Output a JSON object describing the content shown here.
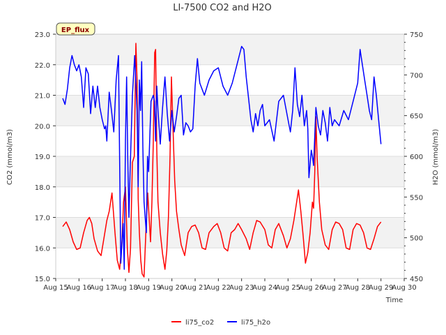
{
  "chart_data": {
    "type": "line",
    "title": "LI-7500 CO2 and H2O",
    "badge": "EP_flux",
    "xlabel": "Time",
    "ylabel_left": "CO2 (mmol/m3)",
    "ylabel_right": "H2O (mmol/m3)",
    "x_ticks": [
      "Aug 15",
      "Aug 16",
      "Aug 17",
      "Aug 18",
      "Aug 19",
      "Aug 20",
      "Aug 21",
      "Aug 22",
      "Aug 23",
      "Aug 24",
      "Aug 25",
      "Aug 26",
      "Aug 27",
      "Aug 28",
      "Aug 29",
      "Aug 30"
    ],
    "xlim": [
      15,
      30
    ],
    "ylim_left": [
      15.0,
      23.0
    ],
    "ylim_right": [
      450,
      750
    ],
    "yticks_left": [
      "15.0",
      "16.0",
      "17.0",
      "18.0",
      "19.0",
      "20.0",
      "21.0",
      "22.0",
      "23.0"
    ],
    "yticks_right": [
      "450",
      "500",
      "550",
      "600",
      "650",
      "700",
      "750"
    ],
    "grid": "horizontal",
    "band_shading": "alternating",
    "legend_position": "bottom-center",
    "series": [
      {
        "name": "li75_co2",
        "color": "#ff0000",
        "axis": "left",
        "x": [
          15.3,
          15.45,
          15.6,
          15.75,
          15.9,
          16.05,
          16.2,
          16.35,
          16.45,
          16.55,
          16.65,
          16.8,
          16.95,
          17.05,
          17.2,
          17.3,
          17.42,
          17.55,
          17.65,
          17.75,
          17.85,
          17.92,
          18.0,
          18.08,
          18.15,
          18.22,
          18.3,
          18.38,
          18.45,
          18.5,
          18.55,
          18.6,
          18.66,
          18.72,
          18.8,
          18.88,
          18.96,
          19.02,
          19.08,
          19.14,
          19.2,
          19.26,
          19.3,
          19.35,
          19.4,
          19.5,
          19.6,
          19.7,
          19.78,
          19.85,
          19.92,
          19.98,
          20.05,
          20.12,
          20.2,
          20.3,
          20.4,
          20.55,
          20.7,
          20.85,
          21.0,
          21.15,
          21.3,
          21.45,
          21.6,
          21.8,
          21.95,
          22.1,
          22.25,
          22.4,
          22.55,
          22.7,
          22.85,
          23.0,
          23.2,
          23.35,
          23.5,
          23.65,
          23.8,
          24.0,
          24.15,
          24.3,
          24.45,
          24.6,
          24.8,
          24.95,
          25.1,
          25.25,
          25.35,
          25.45,
          25.55,
          25.65,
          25.75,
          25.85,
          25.95,
          26.05,
          26.1,
          26.15,
          26.2,
          26.25,
          26.35,
          26.45,
          26.6,
          26.75,
          26.9,
          27.05,
          27.2,
          27.35,
          27.5,
          27.65,
          27.8,
          27.95,
          28.1,
          28.25,
          28.4,
          28.55,
          28.7,
          28.85,
          29.0
        ],
        "values": [
          16.7,
          16.85,
          16.6,
          16.2,
          15.95,
          16.0,
          16.5,
          16.9,
          17.0,
          16.8,
          16.3,
          15.9,
          15.75,
          16.2,
          16.9,
          17.2,
          17.8,
          16.5,
          15.6,
          15.3,
          16.2,
          17.5,
          18.0,
          16.0,
          15.2,
          16.0,
          18.8,
          19.0,
          22.7,
          21.5,
          17.6,
          16.5,
          15.6,
          15.15,
          15.05,
          16.5,
          17.8,
          17.0,
          16.2,
          17.5,
          19.5,
          22.4,
          22.5,
          19.2,
          17.5,
          16.5,
          15.8,
          15.3,
          15.9,
          17.0,
          19.0,
          21.6,
          19.9,
          18.2,
          17.2,
          16.6,
          16.1,
          15.75,
          16.5,
          16.7,
          16.75,
          16.5,
          16.0,
          15.95,
          16.5,
          16.7,
          16.8,
          16.5,
          16.0,
          15.9,
          16.5,
          16.6,
          16.8,
          16.6,
          16.3,
          15.95,
          16.5,
          16.9,
          16.85,
          16.6,
          16.1,
          16.0,
          16.6,
          16.8,
          16.4,
          16.0,
          16.3,
          16.9,
          17.4,
          17.9,
          17.2,
          16.4,
          15.5,
          15.85,
          16.5,
          17.5,
          17.3,
          18.5,
          20.3,
          19.0,
          17.5,
          16.6,
          16.1,
          15.95,
          16.6,
          16.85,
          16.8,
          16.6,
          16.0,
          15.95,
          16.6,
          16.8,
          16.75,
          16.5,
          16.0,
          15.95,
          16.3,
          16.7,
          16.85
        ]
      },
      {
        "name": "li75_h2o",
        "color": "#0000ff",
        "axis": "left",
        "x": [
          15.3,
          15.4,
          15.5,
          15.6,
          15.7,
          15.8,
          15.9,
          16.0,
          16.1,
          16.2,
          16.3,
          16.4,
          16.5,
          16.6,
          16.7,
          16.8,
          16.9,
          17.0,
          17.1,
          17.15,
          17.2,
          17.3,
          17.4,
          17.5,
          17.6,
          17.7,
          17.8,
          17.9,
          17.95,
          18.0,
          18.05,
          18.1,
          18.15,
          18.2,
          18.3,
          18.4,
          18.5,
          18.55,
          18.6,
          18.65,
          18.7,
          18.75,
          18.8,
          18.9,
          18.95,
          19.0,
          19.1,
          19.2,
          19.25,
          19.3,
          19.35,
          19.4,
          19.5,
          19.6,
          19.7,
          19.8,
          19.9,
          20.0,
          20.1,
          20.2,
          20.3,
          20.4,
          20.5,
          20.6,
          20.7,
          20.8,
          20.9,
          21.0,
          21.1,
          21.2,
          21.4,
          21.6,
          21.8,
          22.0,
          22.2,
          22.4,
          22.6,
          22.8,
          23.0,
          23.1,
          23.2,
          23.3,
          23.4,
          23.5,
          23.6,
          23.7,
          23.8,
          23.9,
          24.0,
          24.2,
          24.4,
          24.6,
          24.8,
          25.0,
          25.1,
          25.2,
          25.3,
          25.4,
          25.5,
          25.6,
          25.7,
          25.8,
          25.85,
          25.9,
          26.0,
          26.05,
          26.1,
          26.2,
          26.3,
          26.4,
          26.5,
          26.6,
          26.7,
          26.8,
          26.9,
          27.0,
          27.2,
          27.4,
          27.6,
          27.8,
          28.0,
          28.1,
          28.2,
          28.3,
          28.4,
          28.5,
          28.6,
          28.7,
          28.8,
          28.9,
          29.0
        ],
        "values": [
          20.9,
          20.7,
          21.2,
          21.9,
          22.3,
          22.0,
          21.8,
          22.0,
          21.6,
          20.6,
          21.9,
          21.7,
          20.4,
          21.3,
          20.6,
          21.3,
          20.6,
          20.2,
          19.9,
          20.0,
          19.5,
          21.1,
          20.5,
          19.8,
          21.5,
          22.3,
          15.5,
          16.8,
          15.3,
          19.5,
          21.6,
          19.0,
          17.0,
          18.5,
          21.0,
          22.3,
          20.5,
          18.0,
          21.5,
          20.5,
          22.1,
          19.3,
          17.5,
          16.5,
          19.0,
          18.5,
          20.8,
          21.0,
          20.8,
          19.5,
          21.3,
          20.5,
          19.4,
          20.6,
          21.6,
          20.4,
          19.5,
          20.5,
          19.8,
          20.3,
          20.9,
          21.0,
          19.7,
          20.1,
          20.0,
          19.8,
          19.9,
          21.3,
          22.2,
          21.4,
          21.0,
          21.5,
          21.8,
          21.9,
          21.3,
          21.0,
          21.4,
          22.0,
          22.6,
          22.5,
          21.6,
          20.9,
          20.2,
          19.8,
          20.4,
          20.0,
          20.5,
          20.7,
          20.0,
          20.2,
          19.5,
          20.8,
          21.0,
          20.2,
          19.8,
          20.5,
          21.9,
          20.7,
          20.3,
          21.0,
          20.0,
          20.5,
          19.9,
          18.3,
          19.2,
          19.0,
          18.7,
          20.6,
          20.0,
          19.7,
          20.5,
          20.1,
          19.5,
          20.6,
          20.0,
          20.2,
          20.0,
          20.5,
          20.2,
          20.8,
          21.4,
          22.5,
          22.0,
          21.5,
          21.0,
          20.5,
          20.2,
          21.6,
          21.0,
          20.2,
          19.4
        ]
      }
    ]
  }
}
